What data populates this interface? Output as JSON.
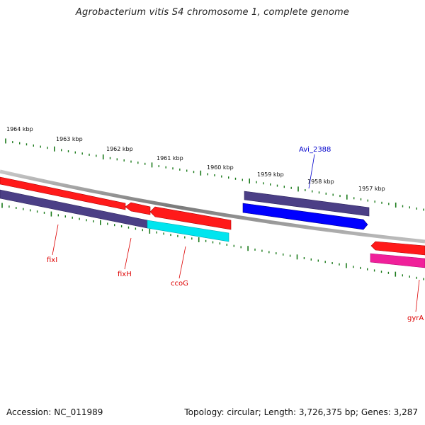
{
  "title": "Agrobacterium vitis S4 chromosome 1, complete genome",
  "footer": {
    "accession": "Accession: NC_011989",
    "summary": "Topology: circular; Length: 3,726,375 bp; Genes: 3,287"
  },
  "scale_labels": [
    "1964 kbp",
    "1963 kbp",
    "1962 kbp",
    "1961 kbp",
    "1960 kbp",
    "1959 kbp",
    "1958 kbp",
    "1957 kbp"
  ],
  "genes": [
    {
      "id": "fixI-gene",
      "label": "fixI",
      "color": "#ff0000"
    },
    {
      "id": "fixH-gene",
      "label": "fixH",
      "color": "#ff0000"
    },
    {
      "id": "ccoG-gene",
      "label": "ccoG",
      "color": "#ff0000"
    },
    {
      "id": "gyrA-gene",
      "label": "gyrA",
      "color": "#ff0000"
    },
    {
      "id": "avi2388-gene",
      "label": "Avi_2388",
      "color": "#0000ff"
    }
  ],
  "colors": {
    "cds": "#ff0000",
    "cds_blue": "#0000ff",
    "cog_purple": "#4b3f86",
    "cog_cyan": "#00e5ef",
    "cog_magenta": "#f0209a",
    "backbone": "#888888",
    "tick": "#1a7a1a",
    "blue_label": "#0000cc"
  }
}
